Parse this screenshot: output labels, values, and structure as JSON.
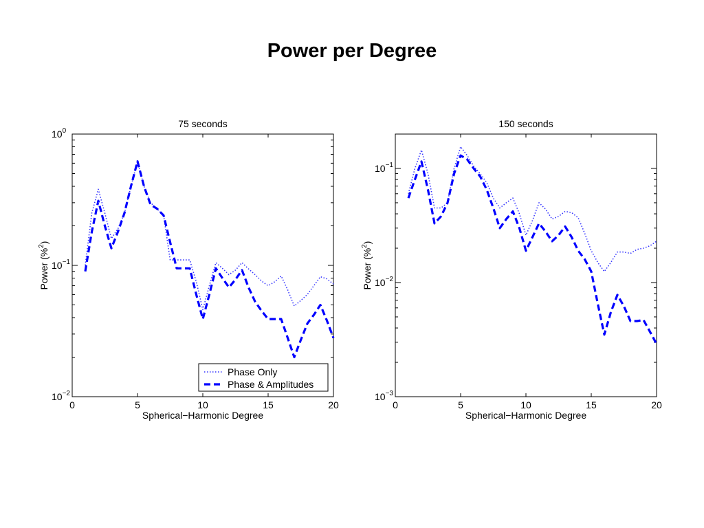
{
  "page": {
    "title": "Power per Degree"
  },
  "chart_data": [
    {
      "type": "line",
      "title": "75 seconds",
      "xlabel": "Spherical−Harmonic Degree",
      "ylabel_base": "Power (%",
      "ylabel_sup": "2",
      "ylabel_close": ")",
      "xlim": [
        0,
        20
      ],
      "ylim": [
        0.01,
        1
      ],
      "yscale": "log",
      "xticks": [
        0,
        5,
        10,
        15,
        20
      ],
      "xtick_labels": [
        "0",
        "5",
        "10",
        "15",
        "20"
      ],
      "yticks": [
        0.01,
        0.1,
        1
      ],
      "ytick_labels": [
        {
          "base": "10",
          "exp": "−2"
        },
        {
          "base": "10",
          "exp": "−1"
        },
        {
          "base": "10",
          "exp": "0"
        }
      ],
      "grid": false,
      "legend": {
        "position": "bottom-right"
      },
      "series": [
        {
          "name": "Phase Only",
          "style": "dotted",
          "color": "#3333ff",
          "x": [
            1,
            1.5,
            2,
            2.5,
            3,
            3.5,
            4,
            4.5,
            5,
            5.5,
            6,
            6.5,
            7,
            7.5,
            8,
            8.5,
            9,
            9.5,
            10,
            10.5,
            11,
            11.5,
            12,
            12.5,
            13,
            13.5,
            14,
            14.5,
            15,
            15.5,
            16,
            16.5,
            17,
            17.5,
            18,
            18.5,
            19,
            19.5,
            20
          ],
          "y": [
            0.1,
            0.25,
            0.38,
            0.25,
            0.16,
            0.19,
            0.25,
            0.4,
            0.62,
            0.4,
            0.3,
            0.27,
            0.24,
            0.11,
            0.11,
            0.11,
            0.11,
            0.075,
            0.046,
            0.07,
            0.105,
            0.095,
            0.085,
            0.092,
            0.105,
            0.094,
            0.085,
            0.076,
            0.07,
            0.075,
            0.083,
            0.065,
            0.049,
            0.054,
            0.06,
            0.07,
            0.082,
            0.079,
            0.072
          ]
        },
        {
          "name": "Phase & Amplitudes",
          "style": "dashed",
          "color": "#0000ff",
          "x": [
            1,
            1.5,
            2,
            2.5,
            3,
            3.5,
            4,
            4.5,
            5,
            5.5,
            6,
            6.5,
            7,
            7.5,
            8,
            8.5,
            9,
            9.5,
            10,
            10.5,
            11,
            11.5,
            12,
            12.5,
            13,
            13.5,
            14,
            14.5,
            15,
            15.5,
            16,
            16.5,
            17,
            17.5,
            18,
            18.5,
            19,
            19.5,
            20
          ],
          "y": [
            0.09,
            0.18,
            0.31,
            0.2,
            0.135,
            0.18,
            0.25,
            0.4,
            0.62,
            0.4,
            0.29,
            0.27,
            0.24,
            0.15,
            0.095,
            0.095,
            0.095,
            0.06,
            0.039,
            0.06,
            0.095,
            0.08,
            0.068,
            0.078,
            0.092,
            0.068,
            0.053,
            0.045,
            0.039,
            0.039,
            0.039,
            0.028,
            0.02,
            0.027,
            0.036,
            0.042,
            0.05,
            0.038,
            0.028
          ]
        }
      ]
    },
    {
      "type": "line",
      "title": "150 seconds",
      "xlabel": "Spherical−Harmonic Degree",
      "ylabel_base": "Power (%",
      "ylabel_sup": "2",
      "ylabel_close": ")",
      "xlim": [
        0,
        20
      ],
      "ylim": [
        0.001,
        0.2
      ],
      "yscale": "log",
      "xticks": [
        0,
        5,
        10,
        15,
        20
      ],
      "xtick_labels": [
        "0",
        "5",
        "10",
        "15",
        "20"
      ],
      "yticks": [
        0.001,
        0.01,
        0.1
      ],
      "ytick_labels": [
        {
          "base": "10",
          "exp": "−3"
        },
        {
          "base": "10",
          "exp": "−2"
        },
        {
          "base": "10",
          "exp": "−1"
        }
      ],
      "grid": false,
      "series": [
        {
          "name": "Phase Only",
          "style": "dotted",
          "color": "#3333ff",
          "x": [
            1,
            1.5,
            2,
            2.5,
            3,
            3.5,
            4,
            4.5,
            5,
            5.5,
            6,
            6.5,
            7,
            7.5,
            8,
            8.5,
            9,
            9.5,
            10,
            10.5,
            11,
            11.5,
            12,
            12.5,
            13,
            13.5,
            14,
            14.5,
            15,
            15.5,
            16,
            16.5,
            17,
            17.5,
            18,
            18.5,
            19,
            19.5,
            20
          ],
          "y": [
            0.06,
            0.1,
            0.145,
            0.09,
            0.045,
            0.045,
            0.05,
            0.1,
            0.155,
            0.13,
            0.105,
            0.09,
            0.075,
            0.055,
            0.045,
            0.05,
            0.055,
            0.04,
            0.026,
            0.035,
            0.05,
            0.044,
            0.036,
            0.038,
            0.042,
            0.041,
            0.037,
            0.027,
            0.019,
            0.015,
            0.0125,
            0.015,
            0.0185,
            0.0185,
            0.018,
            0.0195,
            0.02,
            0.021,
            0.023
          ]
        },
        {
          "name": "Phase & Amplitudes",
          "style": "dashed",
          "color": "#0000ff",
          "x": [
            1,
            1.5,
            2,
            2.5,
            3,
            3.5,
            4,
            4.5,
            5,
            5.5,
            6,
            6.5,
            7,
            7.5,
            8,
            8.5,
            9,
            9.5,
            10,
            10.5,
            11,
            11.5,
            12,
            12.5,
            13,
            13.5,
            14,
            14.5,
            15,
            15.5,
            16,
            16.5,
            17,
            17.5,
            18,
            18.5,
            19,
            19.5,
            20
          ],
          "y": [
            0.055,
            0.08,
            0.115,
            0.065,
            0.033,
            0.038,
            0.05,
            0.09,
            0.13,
            0.12,
            0.1,
            0.085,
            0.065,
            0.045,
            0.03,
            0.036,
            0.042,
            0.03,
            0.019,
            0.025,
            0.033,
            0.028,
            0.023,
            0.026,
            0.031,
            0.025,
            0.019,
            0.016,
            0.0125,
            0.0065,
            0.0035,
            0.0055,
            0.0078,
            0.0062,
            0.0046,
            0.0046,
            0.0047,
            0.0037,
            0.0029
          ]
        }
      ]
    }
  ]
}
